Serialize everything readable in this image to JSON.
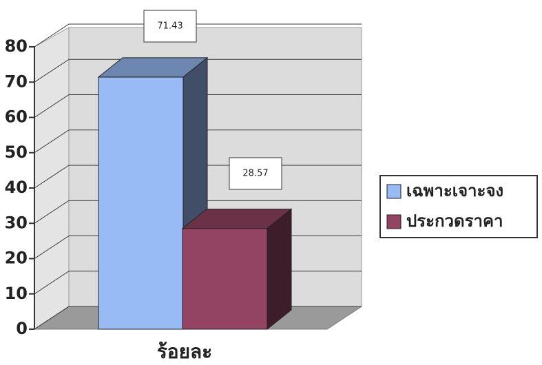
{
  "chart_data": {
    "type": "bar",
    "categories": [
      "ร้อยละ"
    ],
    "series": [
      {
        "name": "เฉพาะเจาะจง",
        "color": "#99bbf5",
        "values": [
          71.43
        ]
      },
      {
        "name": "ประกวดราคา",
        "color": "#934463",
        "values": [
          28.57
        ]
      }
    ],
    "ylim": [
      0,
      80
    ],
    "yticks": [
      0,
      10,
      20,
      30,
      40,
      50,
      60,
      70,
      80
    ],
    "grid": true,
    "legend": "right",
    "three_d": true
  }
}
